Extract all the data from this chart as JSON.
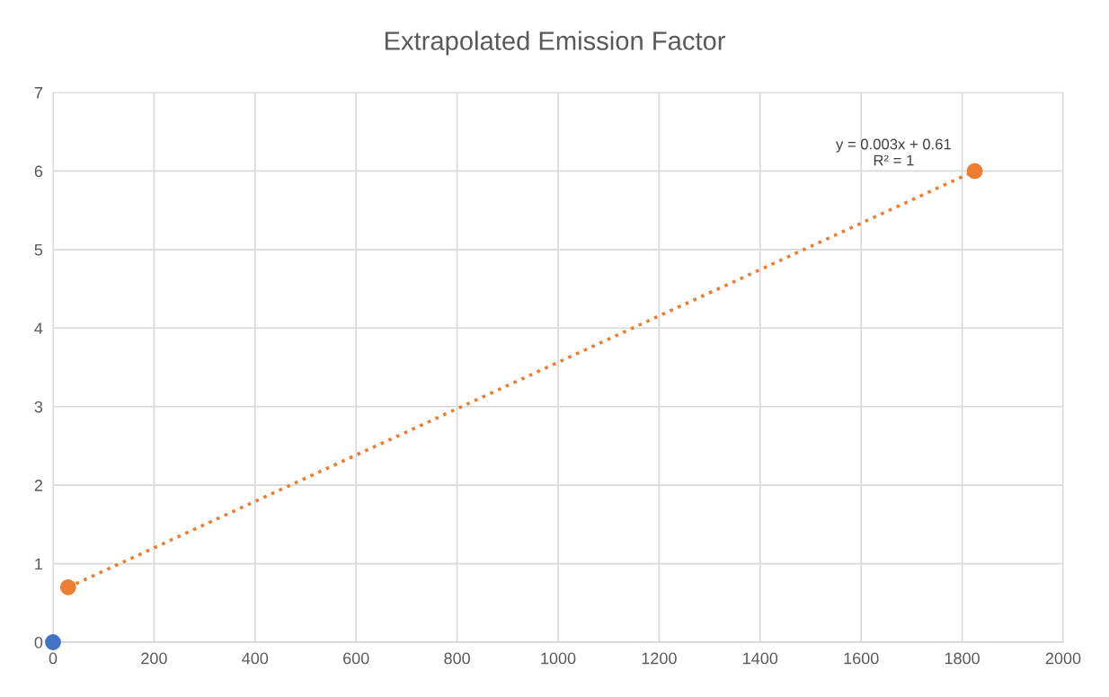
{
  "chart_data": {
    "type": "scatter",
    "title": "Extrapolated Emission Factor",
    "series": [
      {
        "color": "#4472c4",
        "x": [
          0
        ],
        "values": [
          0
        ],
        "marker": "circle"
      },
      {
        "color": "#ed7d31",
        "x": [
          30,
          1825
        ],
        "values": [
          0.7,
          6
        ],
        "marker": "circle"
      },
      {
        "type": "line",
        "color": "#ed7d31",
        "x": [
          30,
          1825
        ],
        "values": [
          0.7,
          6
        ],
        "line_style": "dotted",
        "marker": "none"
      }
    ],
    "xlim": [
      0,
      2000
    ],
    "xticks": [
      0,
      200,
      400,
      600,
      800,
      1000,
      1200,
      1400,
      1600,
      1800,
      2000
    ],
    "ylim": [
      0,
      7
    ],
    "yticks": [
      0,
      1,
      2,
      3,
      4,
      5,
      6,
      7
    ],
    "grid": true,
    "legend": false,
    "annotations": [
      {
        "text": "y = 0.003x + 0.61\nR² = 1",
        "x": 1825,
        "y": 6
      }
    ]
  }
}
